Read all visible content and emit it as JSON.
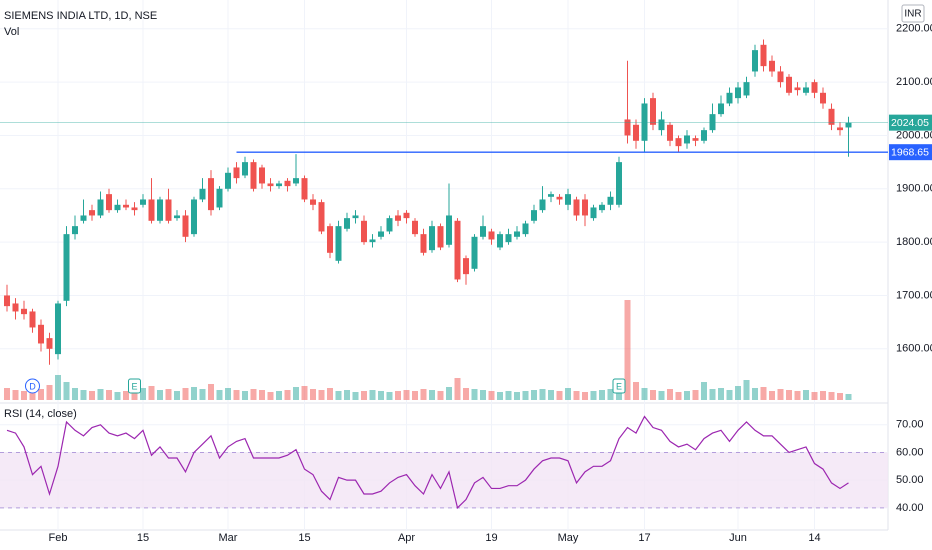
{
  "chart_data": {
    "type": "candlestick",
    "title": "SIEMENS INDIA LTD, 1D, NSE",
    "volume_label": "Vol",
    "currency": "INR",
    "up_color": "#26a69a",
    "down_color": "#ef5350",
    "grid": true,
    "categories": [
      null,
      null,
      null,
      null,
      null,
      null,
      "Feb",
      null,
      null,
      null,
      null,
      null,
      null,
      null,
      null,
      null,
      "15",
      null,
      null,
      null,
      null,
      null,
      null,
      null,
      null,
      null,
      "Mar",
      null,
      null,
      null,
      null,
      null,
      null,
      null,
      null,
      "15",
      null,
      null,
      null,
      null,
      null,
      null,
      null,
      null,
      null,
      null,
      null,
      "Apr",
      null,
      null,
      null,
      null,
      null,
      null,
      null,
      null,
      null,
      "19",
      null,
      null,
      null,
      null,
      null,
      null,
      null,
      null,
      "May",
      null,
      null,
      null,
      null,
      null,
      null,
      null,
      null,
      "17",
      null,
      null,
      null,
      null,
      null,
      null,
      null,
      null,
      null,
      null,
      "Jun",
      null,
      null,
      null,
      null,
      null,
      null,
      null,
      null,
      "14",
      null,
      null,
      null,
      null
    ],
    "open": [
      1700,
      1685,
      1675,
      1670,
      1645,
      1620,
      1590,
      1690,
      1815,
      1840,
      1860,
      1850,
      1890,
      1860,
      1870,
      1865,
      1870,
      1880,
      1840,
      1880,
      1845,
      1850,
      1815,
      1880,
      1920,
      1865,
      1900,
      1940,
      1925,
      1950,
      1940,
      1910,
      1905,
      1915,
      1910,
      1920,
      1880,
      1875,
      1830,
      1765,
      1825,
      1845,
      1840,
      1800,
      1810,
      1820,
      1850,
      1855,
      1840,
      1815,
      1785,
      1830,
      1795,
      1840,
      1770,
      1750,
      1810,
      1820,
      1790,
      1800,
      1810,
      1815,
      1840,
      1860,
      1885,
      1885,
      1870,
      1880,
      1880,
      1845,
      1860,
      1870,
      1870,
      2030,
      2020,
      1990,
      2070,
      2010,
      2020,
      1995,
      1985,
      1995,
      1990,
      2010,
      2040,
      2060,
      2070,
      2075,
      2120,
      2170,
      2140,
      2120,
      2110,
      2090,
      2080,
      2100,
      2080,
      2050,
      2015,
      2015
    ],
    "high": [
      1720,
      1695,
      1690,
      1675,
      1655,
      1630,
      1690,
      1830,
      1850,
      1880,
      1870,
      1895,
      1900,
      1880,
      1880,
      1875,
      1890,
      1920,
      1885,
      1900,
      1860,
      1860,
      1885,
      1920,
      1935,
      1905,
      1940,
      1950,
      1960,
      1955,
      1945,
      1920,
      1915,
      1920,
      1965,
      1925,
      1890,
      1880,
      1835,
      1840,
      1855,
      1860,
      1850,
      1815,
      1830,
      1850,
      1860,
      1860,
      1845,
      1825,
      1840,
      1835,
      1910,
      1845,
      1775,
      1815,
      1850,
      1825,
      1820,
      1825,
      1830,
      1840,
      1870,
      1905,
      1895,
      1890,
      1900,
      1885,
      1890,
      1870,
      1875,
      1895,
      1960,
      2140,
      2030,
      2070,
      2080,
      2045,
      2025,
      2000,
      2010,
      2000,
      2015,
      2060,
      2075,
      2090,
      2100,
      2110,
      2170,
      2180,
      2150,
      2130,
      2115,
      2100,
      2100,
      2105,
      2090,
      2060,
      2025,
      2035
    ],
    "low": [
      1670,
      1655,
      1655,
      1630,
      1595,
      1570,
      1580,
      1680,
      1805,
      1835,
      1840,
      1845,
      1855,
      1855,
      1860,
      1850,
      1865,
      1835,
      1835,
      1835,
      1840,
      1800,
      1810,
      1875,
      1850,
      1860,
      1895,
      1910,
      1920,
      1895,
      1900,
      1895,
      1900,
      1895,
      1905,
      1875,
      1860,
      1815,
      1770,
      1760,
      1820,
      1835,
      1795,
      1790,
      1805,
      1815,
      1830,
      1835,
      1810,
      1775,
      1780,
      1785,
      1790,
      1725,
      1720,
      1745,
      1805,
      1795,
      1785,
      1795,
      1805,
      1810,
      1835,
      1855,
      1875,
      1870,
      1860,
      1840,
      1830,
      1840,
      1855,
      1860,
      1865,
      1985,
      1975,
      1970,
      2010,
      2000,
      1980,
      1970,
      1975,
      1980,
      1985,
      2005,
      2035,
      2055,
      2060,
      2070,
      2110,
      2120,
      2110,
      2090,
      2075,
      2075,
      2075,
      2070,
      2050,
      2010,
      2000,
      1960
    ],
    "close": [
      1680,
      1670,
      1665,
      1640,
      1610,
      1600,
      1685,
      1815,
      1830,
      1850,
      1850,
      1880,
      1860,
      1870,
      1865,
      1860,
      1880,
      1840,
      1880,
      1840,
      1850,
      1810,
      1880,
      1900,
      1860,
      1900,
      1930,
      1920,
      1950,
      1900,
      1910,
      1905,
      1910,
      1905,
      1920,
      1880,
      1870,
      1820,
      1780,
      1830,
      1845,
      1850,
      1800,
      1805,
      1820,
      1845,
      1840,
      1845,
      1815,
      1780,
      1830,
      1790,
      1850,
      1730,
      1740,
      1810,
      1830,
      1805,
      1815,
      1815,
      1820,
      1835,
      1860,
      1880,
      1890,
      1880,
      1890,
      1850,
      1850,
      1865,
      1870,
      1885,
      1950,
      2000,
      1990,
      2060,
      2020,
      2030,
      1990,
      1980,
      2000,
      1990,
      2010,
      2040,
      2060,
      2080,
      2090,
      2100,
      2160,
      2130,
      2120,
      2100,
      2080,
      2085,
      2090,
      2080,
      2060,
      2020,
      2010,
      2024.05
    ],
    "volume": [
      12,
      10,
      9,
      14,
      11,
      15,
      25,
      18,
      12,
      10,
      9,
      11,
      10,
      8,
      9,
      8,
      12,
      14,
      10,
      11,
      9,
      12,
      13,
      11,
      16,
      10,
      12,
      10,
      9,
      11,
      10,
      8,
      9,
      10,
      13,
      14,
      11,
      10,
      12,
      9,
      10,
      8,
      9,
      10,
      9,
      8,
      9,
      10,
      9,
      11,
      10,
      9,
      13,
      22,
      12,
      11,
      10,
      9,
      8,
      9,
      8,
      9,
      10,
      11,
      10,
      9,
      12,
      9,
      8,
      9,
      10,
      11,
      20,
      100,
      18,
      12,
      10,
      9,
      11,
      8,
      9,
      10,
      18,
      11,
      12,
      10,
      14,
      20,
      12,
      13,
      9,
      11,
      10,
      9,
      10,
      8,
      9,
      8,
      7,
      6
    ],
    "ylim": [
      1504,
      2254
    ],
    "yticks": [
      {
        "value": 2200,
        "label": "2200.00"
      },
      {
        "value": 2100,
        "label": "2100.00"
      },
      {
        "value": 2000,
        "label": "2000.00"
      },
      {
        "value": 1900,
        "label": "1900.00"
      },
      {
        "value": 1800,
        "label": "1800.00"
      },
      {
        "value": 1700,
        "label": "1700.00"
      },
      {
        "value": 1600,
        "label": "1600.00"
      }
    ],
    "level": 1968.65,
    "events": [
      {
        "index": 3,
        "label": "D"
      },
      {
        "index": 15,
        "label": "E"
      },
      {
        "index": 72,
        "label": "E"
      }
    ],
    "rsi": {
      "title": "RSI (14, close)",
      "color": "#9c27b0",
      "band": [
        40,
        60
      ],
      "ylim": [
        32,
        77.5
      ],
      "yticks": [
        {
          "value": 70,
          "label": "70.00"
        },
        {
          "value": 60,
          "label": "60.00"
        },
        {
          "value": 50,
          "label": "50.00"
        },
        {
          "value": 40,
          "label": "40.00"
        }
      ],
      "values": [
        68,
        67,
        62,
        52,
        55,
        45,
        55,
        71,
        68,
        66,
        69,
        70,
        67,
        66,
        67,
        65,
        68,
        59,
        62,
        58,
        58,
        53,
        60,
        63,
        66,
        58,
        62,
        64,
        65,
        58,
        58,
        58,
        58,
        59,
        61,
        54,
        52,
        46,
        43,
        51,
        50,
        50,
        45,
        45,
        46,
        49,
        51,
        52,
        48,
        45,
        52,
        47,
        53,
        40,
        43,
        49,
        51,
        47,
        47,
        48,
        48,
        50,
        54,
        57,
        58,
        58,
        57,
        49,
        53,
        55,
        55,
        57,
        65,
        69,
        67,
        73,
        69,
        68,
        64,
        62,
        63,
        61,
        65,
        67,
        68,
        64,
        68,
        71,
        68,
        66,
        66,
        63,
        60,
        61,
        62,
        56,
        54,
        49,
        47,
        49
      ]
    }
  }
}
